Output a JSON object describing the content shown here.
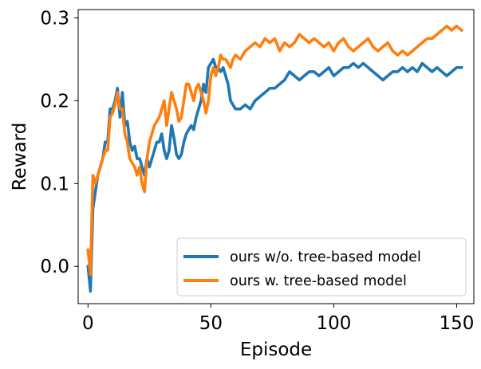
{
  "chart_data": {
    "type": "line",
    "title": "",
    "xlabel": "Episode",
    "ylabel": "Reward",
    "xlim": [
      -4,
      157
    ],
    "ylim": [
      -0.045,
      0.31
    ],
    "xticks": [
      0,
      50,
      100,
      150
    ],
    "xtick_labels": [
      "0",
      "50",
      "100",
      "150"
    ],
    "yticks": [
      0.0,
      0.1,
      0.2,
      0.3
    ],
    "ytick_labels": [
      "0.0",
      "0.1",
      "0.2",
      "0.3"
    ],
    "grid": false,
    "legend_position": "lower-right",
    "series": [
      {
        "name": "ours w/o. tree-based model",
        "color": "#1f77b4",
        "x": [
          0,
          1,
          2,
          3,
          4,
          5,
          6,
          7,
          8,
          9,
          10,
          11,
          12,
          13,
          14,
          15,
          16,
          17,
          18,
          19,
          20,
          21,
          22,
          23,
          24,
          25,
          26,
          27,
          28,
          29,
          30,
          31,
          32,
          33,
          34,
          35,
          36,
          37,
          38,
          39,
          40,
          41,
          42,
          43,
          44,
          45,
          46,
          47,
          48,
          49,
          50,
          51,
          52,
          53,
          54,
          55,
          56,
          57,
          58,
          59,
          60,
          62,
          64,
          66,
          68,
          70,
          72,
          74,
          76,
          78,
          80,
          82,
          84,
          86,
          88,
          90,
          92,
          94,
          96,
          98,
          100,
          102,
          104,
          106,
          108,
          110,
          112,
          114,
          116,
          118,
          120,
          122,
          124,
          126,
          128,
          130,
          132,
          134,
          136,
          138,
          140,
          142,
          144,
          146,
          148,
          150,
          152
        ],
        "y": [
          0.0,
          -0.03,
          0.07,
          0.09,
          0.11,
          0.12,
          0.13,
          0.15,
          0.15,
          0.19,
          0.19,
          0.2,
          0.215,
          0.18,
          0.21,
          0.17,
          0.175,
          0.15,
          0.14,
          0.145,
          0.13,
          0.13,
          0.12,
          0.11,
          0.13,
          0.12,
          0.13,
          0.14,
          0.15,
          0.15,
          0.16,
          0.14,
          0.13,
          0.14,
          0.17,
          0.155,
          0.135,
          0.13,
          0.135,
          0.15,
          0.16,
          0.165,
          0.17,
          0.165,
          0.18,
          0.19,
          0.2,
          0.22,
          0.21,
          0.24,
          0.245,
          0.25,
          0.24,
          0.24,
          0.235,
          0.24,
          0.23,
          0.22,
          0.2,
          0.195,
          0.19,
          0.19,
          0.195,
          0.19,
          0.2,
          0.205,
          0.21,
          0.215,
          0.215,
          0.22,
          0.225,
          0.235,
          0.23,
          0.225,
          0.23,
          0.235,
          0.235,
          0.23,
          0.235,
          0.24,
          0.23,
          0.235,
          0.24,
          0.24,
          0.245,
          0.24,
          0.245,
          0.24,
          0.235,
          0.23,
          0.225,
          0.23,
          0.235,
          0.235,
          0.24,
          0.235,
          0.24,
          0.235,
          0.245,
          0.24,
          0.235,
          0.24,
          0.235,
          0.23,
          0.235,
          0.24,
          0.24
        ]
      },
      {
        "name": "ours w. tree-based model",
        "color": "#ff7f0e",
        "x": [
          0,
          1,
          2,
          3,
          4,
          5,
          6,
          7,
          8,
          9,
          10,
          11,
          12,
          13,
          14,
          15,
          16,
          17,
          18,
          19,
          20,
          21,
          22,
          23,
          24,
          25,
          26,
          27,
          28,
          29,
          30,
          31,
          32,
          33,
          34,
          35,
          36,
          37,
          38,
          39,
          40,
          41,
          42,
          43,
          44,
          45,
          46,
          47,
          48,
          49,
          50,
          51,
          52,
          53,
          54,
          55,
          56,
          57,
          58,
          59,
          60,
          62,
          64,
          66,
          68,
          70,
          72,
          74,
          76,
          78,
          80,
          82,
          84,
          86,
          88,
          90,
          92,
          94,
          96,
          98,
          100,
          102,
          104,
          106,
          108,
          110,
          112,
          114,
          116,
          118,
          120,
          122,
          124,
          126,
          128,
          130,
          132,
          134,
          136,
          138,
          140,
          142,
          144,
          146,
          148,
          150,
          152
        ],
        "y": [
          0.02,
          -0.01,
          0.11,
          0.1,
          0.11,
          0.12,
          0.13,
          0.14,
          0.14,
          0.18,
          0.185,
          0.195,
          0.21,
          0.19,
          0.19,
          0.16,
          0.15,
          0.13,
          0.125,
          0.12,
          0.11,
          0.12,
          0.1,
          0.09,
          0.13,
          0.15,
          0.16,
          0.17,
          0.175,
          0.18,
          0.19,
          0.2,
          0.17,
          0.19,
          0.21,
          0.2,
          0.19,
          0.175,
          0.18,
          0.2,
          0.22,
          0.22,
          0.21,
          0.2,
          0.215,
          0.22,
          0.21,
          0.2,
          0.185,
          0.2,
          0.23,
          0.24,
          0.23,
          0.24,
          0.255,
          0.25,
          0.25,
          0.245,
          0.24,
          0.25,
          0.255,
          0.25,
          0.26,
          0.265,
          0.27,
          0.265,
          0.275,
          0.27,
          0.275,
          0.26,
          0.27,
          0.265,
          0.27,
          0.28,
          0.275,
          0.27,
          0.275,
          0.27,
          0.265,
          0.27,
          0.26,
          0.27,
          0.275,
          0.265,
          0.26,
          0.265,
          0.27,
          0.275,
          0.265,
          0.26,
          0.265,
          0.27,
          0.26,
          0.255,
          0.26,
          0.255,
          0.26,
          0.265,
          0.27,
          0.275,
          0.275,
          0.28,
          0.285,
          0.29,
          0.285,
          0.29,
          0.285
        ]
      }
    ]
  }
}
